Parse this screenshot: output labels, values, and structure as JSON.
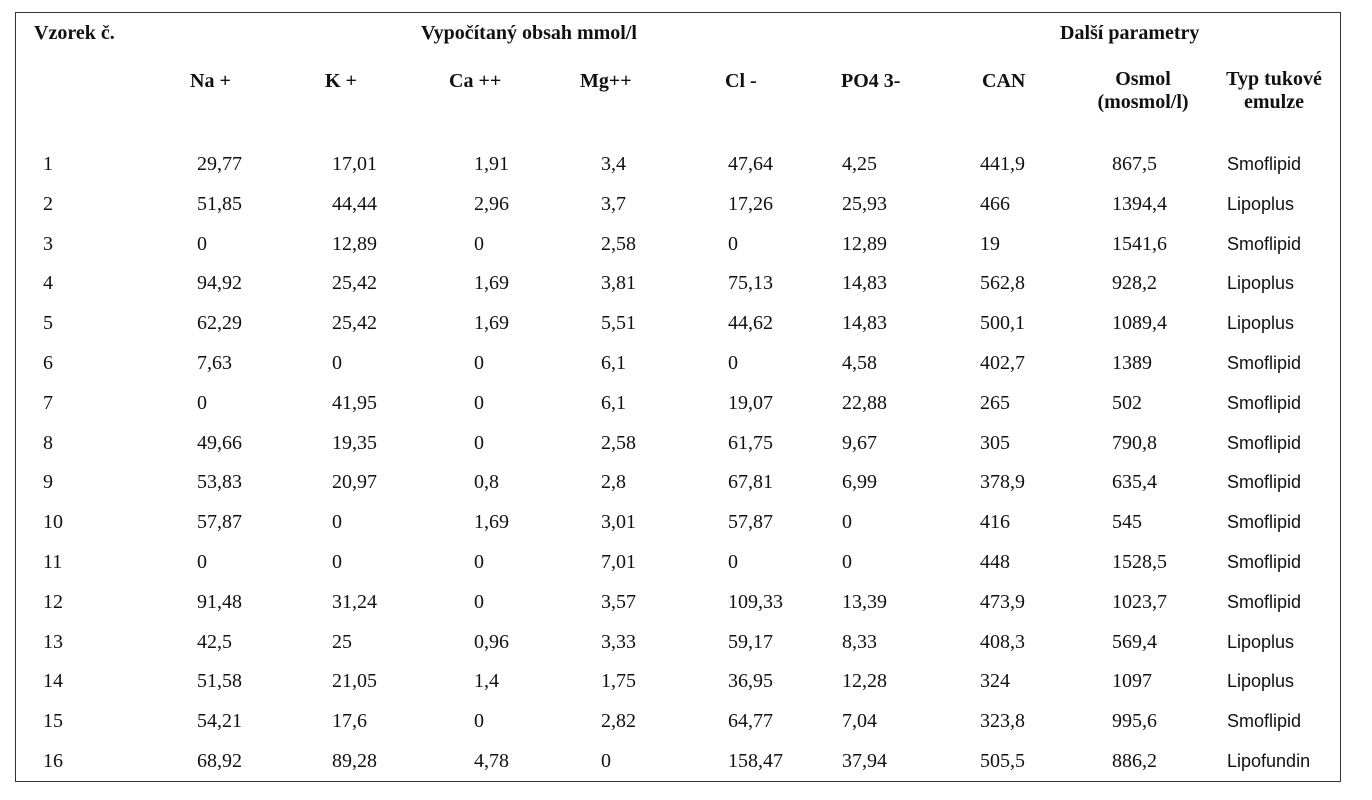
{
  "header": {
    "sample": "Vzorek č.",
    "computed": "Vypočítaný obsah mmol/l",
    "other": "Další parametry"
  },
  "columns": {
    "na": "Na +",
    "k": "K +",
    "ca": "Ca ++",
    "mg": "Mg++",
    "cl": "Cl -",
    "po4": "PO4 3-",
    "can": "CAN",
    "osmol_line1": "Osmol",
    "osmol_line2": "(mosmol/l)",
    "type_line1": "Typ tukové",
    "type_line2": "emulze"
  },
  "rows": [
    [
      "1",
      "29,77",
      "17,01",
      "1,91",
      "3,4",
      "47,64",
      "4,25",
      "441,9",
      "867,5",
      "Smoflipid"
    ],
    [
      "2",
      "51,85",
      "44,44",
      "2,96",
      "3,7",
      "17,26",
      "25,93",
      "466",
      "1394,4",
      "Lipoplus"
    ],
    [
      "3",
      "0",
      "12,89",
      "0",
      "2,58",
      "0",
      "12,89",
      "19",
      "1541,6",
      "Smoflipid"
    ],
    [
      "4",
      "94,92",
      "25,42",
      "1,69",
      "3,81",
      "75,13",
      "14,83",
      "562,8",
      "928,2",
      "Lipoplus"
    ],
    [
      "5",
      "62,29",
      "25,42",
      "1,69",
      "5,51",
      "44,62",
      "14,83",
      "500,1",
      "1089,4",
      "Lipoplus"
    ],
    [
      "6",
      "7,63",
      "0",
      "0",
      "6,1",
      "0",
      "4,58",
      "402,7",
      "1389",
      "Smoflipid"
    ],
    [
      "7",
      "0",
      "41,95",
      "0",
      "6,1",
      "19,07",
      "22,88",
      "265",
      "502",
      "Smoflipid"
    ],
    [
      "8",
      "49,66",
      "19,35",
      "0",
      "2,58",
      "61,75",
      "9,67",
      "305",
      "790,8",
      "Smoflipid"
    ],
    [
      "9",
      "53,83",
      "20,97",
      "0,8",
      "2,8",
      "67,81",
      "6,99",
      "378,9",
      "635,4",
      "Smoflipid"
    ],
    [
      "10",
      "57,87",
      "0",
      "1,69",
      "3,01",
      "57,87",
      "0",
      "416",
      "545",
      "Smoflipid"
    ],
    [
      "11",
      "0",
      "0",
      "0",
      "7,01",
      "0",
      "0",
      "448",
      "1528,5",
      "Smoflipid"
    ],
    [
      "12",
      "91,48",
      "31,24",
      "0",
      "3,57",
      "109,33",
      "13,39",
      "473,9",
      "1023,7",
      "Smoflipid"
    ],
    [
      "13",
      "42,5",
      "25",
      "0,96",
      "3,33",
      "59,17",
      "8,33",
      "408,3",
      "569,4",
      "Lipoplus"
    ],
    [
      "14",
      "51,58",
      "21,05",
      "1,4",
      "1,75",
      "36,95",
      "12,28",
      "324",
      "1097",
      "Lipoplus"
    ],
    [
      "15",
      "54,21",
      "17,6",
      "0",
      "2,82",
      "64,77",
      "7,04",
      "323,8",
      "995,6",
      "Smoflipid"
    ],
    [
      "16",
      "68,92",
      "89,28",
      "4,78",
      "0",
      "158,47",
      "37,94",
      "505,5",
      "886,2",
      "Lipofundin"
    ]
  ]
}
